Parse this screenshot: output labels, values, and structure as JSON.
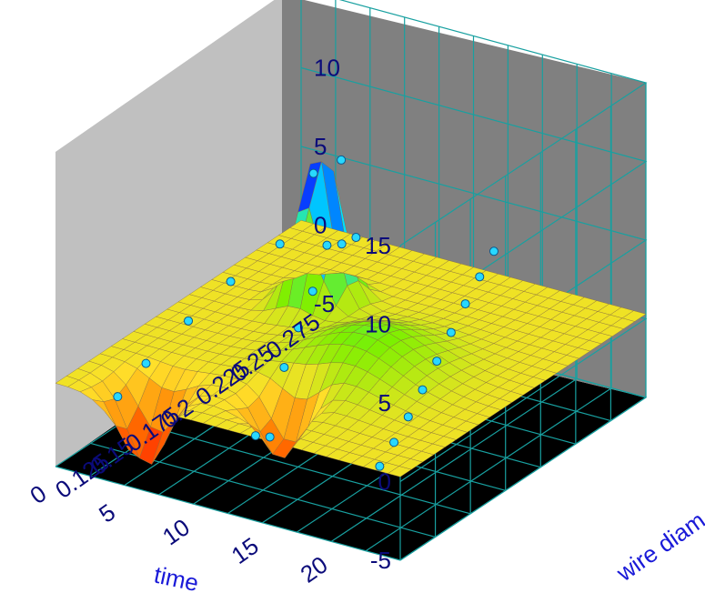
{
  "chart_data": {
    "type": "surface3d",
    "title": "",
    "axes": {
      "x": {
        "label": "time",
        "range": [
          0,
          25
        ],
        "ticks": [
          0,
          5,
          10,
          15,
          20
        ],
        "tick_labels": [
          "0",
          "5",
          "10",
          "15",
          "20"
        ]
      },
      "y": {
        "label": "wire diam",
        "range": [
          0.125,
          0.3
        ],
        "ticks": [
          0.125,
          0.15,
          0.175,
          0.2,
          0.225,
          0.25,
          0.275
        ],
        "tick_labels": [
          "0.125",
          "0.15",
          "0.175",
          "0.2",
          "0.225",
          "0.25",
          "0.275"
        ]
      },
      "z": {
        "label": "",
        "range": [
          -5,
          15
        ],
        "ticks": [
          -5,
          0,
          5,
          10,
          15
        ],
        "tick_labels": [
          "-5",
          "0",
          "5",
          "10",
          "15"
        ]
      }
    },
    "grid": true,
    "colormap": [
      "#ff0000",
      "#ff7a00",
      "#ffe02a",
      "#7cf000",
      "#00e0ff",
      "#0040ff",
      "#ff00ff"
    ],
    "colors": {
      "back_walls": "#c0c0c0",
      "right_wall": "#808080",
      "floor": "#000000",
      "grid_lines": "#18a0a0",
      "points": "#28d8ff",
      "mesh_lines": "#8a7040"
    },
    "surface_features": [
      {
        "kind": "peak",
        "time": 7.5,
        "wire_diam": 0.24,
        "z": 10.2
      },
      {
        "kind": "dip",
        "time": 13,
        "wire_diam": 0.16,
        "z": -4.2
      },
      {
        "kind": "dip",
        "time": 5,
        "wire_diam": 0.14,
        "z": -5
      },
      {
        "kind": "ridge",
        "time": 15,
        "wire_diam": 0.2,
        "z": 2.5
      }
    ],
    "points": [
      {
        "time": 23,
        "wire_diam": 0.13,
        "z": 0.2
      },
      {
        "time": 22,
        "wire_diam": 0.15,
        "z": 0.3
      },
      {
        "time": 21,
        "wire_diam": 0.17,
        "z": 0.5
      },
      {
        "time": 20,
        "wire_diam": 0.19,
        "z": 0.8
      },
      {
        "time": 19,
        "wire_diam": 0.21,
        "z": 1.2
      },
      {
        "time": 18,
        "wire_diam": 0.23,
        "z": 1.6
      },
      {
        "time": 17,
        "wire_diam": 0.25,
        "z": 2.0
      },
      {
        "time": 16,
        "wire_diam": 0.27,
        "z": 2.3
      },
      {
        "time": 15,
        "wire_diam": 0.29,
        "z": 2.5
      },
      {
        "time": 14,
        "wire_diam": 0.13,
        "z": 0.0
      },
      {
        "time": 13,
        "wire_diam": 0.15,
        "z": -1.5
      },
      {
        "time": 12,
        "wire_diam": 0.17,
        "z": 1.5
      },
      {
        "time": 11,
        "wire_diam": 0.19,
        "z": 2.6
      },
      {
        "time": 10,
        "wire_diam": 0.21,
        "z": 3.5
      },
      {
        "time": 9,
        "wire_diam": 0.23,
        "z": 5.0
      },
      {
        "time": 8,
        "wire_diam": 0.25,
        "z": 9.0
      },
      {
        "time": 7,
        "wire_diam": 0.24,
        "z": 8.5
      },
      {
        "time": 6,
        "wire_diam": 0.27,
        "z": 2.0
      },
      {
        "time": 5,
        "wire_diam": 0.29,
        "z": 1.0
      },
      {
        "time": 4,
        "wire_diam": 0.13,
        "z": 0.1
      },
      {
        "time": 3,
        "wire_diam": 0.16,
        "z": 0.2
      },
      {
        "time": 2,
        "wire_diam": 0.2,
        "z": 0.3
      },
      {
        "time": 1,
        "wire_diam": 0.24,
        "z": 0.2
      },
      {
        "time": 0.5,
        "wire_diam": 0.28,
        "z": 0.1
      }
    ]
  }
}
